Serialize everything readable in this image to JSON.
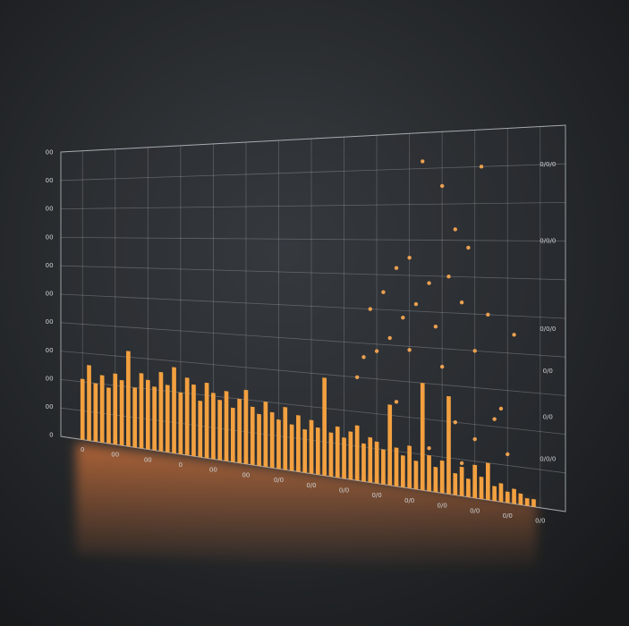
{
  "chart_data": [
    {
      "type": "bar",
      "color": "#f2a040",
      "x": [
        0,
        1,
        2,
        3,
        4,
        5,
        6,
        7,
        8,
        9,
        10,
        11,
        12,
        13,
        14,
        15,
        16,
        17,
        18,
        19,
        20,
        21,
        22,
        23,
        24,
        25,
        26,
        27,
        28,
        29,
        30,
        31,
        32,
        33,
        34,
        35,
        36,
        37,
        38,
        39,
        40,
        41,
        42,
        43,
        44,
        45,
        46,
        47,
        48,
        49,
        50,
        51,
        52,
        53,
        54,
        55,
        56,
        57,
        58,
        59,
        60,
        61,
        62,
        63,
        64,
        65,
        66,
        67,
        68,
        69
      ],
      "values": [
        2.1,
        2.6,
        2.0,
        2.3,
        1.9,
        2.4,
        2.2,
        3.2,
        2.0,
        2.5,
        2.3,
        2.1,
        2.6,
        2.2,
        2.8,
        2.0,
        2.5,
        2.3,
        1.8,
        2.4,
        2.1,
        1.9,
        2.2,
        1.7,
        2.0,
        2.3,
        1.8,
        1.6,
        2.0,
        1.7,
        1.5,
        1.9,
        1.4,
        1.7,
        1.3,
        1.6,
        1.4,
        2.9,
        1.3,
        1.5,
        1.2,
        1.4,
        1.6,
        1.1,
        1.3,
        1.2,
        1.0,
        2.3,
        1.1,
        0.9,
        1.2,
        0.8,
        3.0,
        1.0,
        0.7,
        0.9,
        2.7,
        0.6,
        0.8,
        0.5,
        0.9,
        0.6,
        1.0,
        0.4,
        0.5,
        0.3,
        0.4,
        0.3,
        0.2,
        0.2
      ],
      "xlim": [
        -1,
        70
      ],
      "xticks": [
        {
          "value": 0,
          "label": "0"
        },
        {
          "value": 5,
          "label": "00"
        },
        {
          "value": 10,
          "label": "00"
        },
        {
          "value": 15,
          "label": "0"
        },
        {
          "value": 20,
          "label": "00"
        },
        {
          "value": 25,
          "label": "00"
        },
        {
          "value": 30,
          "label": "0/0"
        },
        {
          "value": 35,
          "label": "0/0"
        },
        {
          "value": 40,
          "label": "0/0"
        },
        {
          "value": 45,
          "label": "0/0"
        },
        {
          "value": 50,
          "label": "0/0"
        },
        {
          "value": 55,
          "label": "0/0"
        },
        {
          "value": 60,
          "label": "0/0"
        },
        {
          "value": 65,
          "label": "0/0"
        },
        {
          "value": 70,
          "label": "0/0"
        }
      ],
      "ylim": [
        0,
        10
      ],
      "yticks": [
        {
          "value": 0,
          "label": "0"
        },
        {
          "value": 1,
          "label": "00"
        },
        {
          "value": 2,
          "label": "00"
        },
        {
          "value": 3,
          "label": "00"
        },
        {
          "value": 4,
          "label": "00"
        },
        {
          "value": 5,
          "label": "00"
        },
        {
          "value": 6,
          "label": "00"
        },
        {
          "value": 7,
          "label": "00"
        },
        {
          "value": 8,
          "label": "00"
        },
        {
          "value": 9,
          "label": "00"
        },
        {
          "value": 10,
          "label": "00"
        }
      ],
      "y2lim": [
        0,
        10
      ],
      "y2ticks": [
        {
          "value": 1.3,
          "label": "0/0/0"
        },
        {
          "value": 2.4,
          "label": "0/0"
        },
        {
          "value": 3.6,
          "label": "0/0"
        },
        {
          "value": 4.7,
          "label": "0/0/0"
        },
        {
          "value": 7,
          "label": "0/0/0"
        },
        {
          "value": 9,
          "label": "0/0/0"
        }
      ],
      "grid": true
    },
    {
      "type": "scatter",
      "color": "#eba050",
      "x": [
        52,
        55,
        61,
        57,
        48,
        50,
        53,
        56,
        59,
        44,
        46,
        49,
        51,
        54,
        58,
        47,
        45,
        43,
        50,
        55,
        60,
        62,
        52,
        48,
        42,
        57,
        64,
        66,
        60,
        63,
        65,
        53,
        58,
        56
      ],
      "y": [
        9.2,
        8.5,
        9.0,
        7.3,
        6.2,
        6.5,
        5.8,
        6.0,
        6.8,
        5.0,
        5.5,
        4.8,
        5.2,
        4.6,
        5.3,
        4.2,
        3.8,
        3.6,
        3.9,
        3.5,
        4.0,
        5.0,
        2.8,
        2.4,
        3.0,
        2.0,
        2.5,
        4.5,
        1.6,
        2.2,
        1.3,
        1.2,
        0.9,
        0.8
      ]
    }
  ]
}
